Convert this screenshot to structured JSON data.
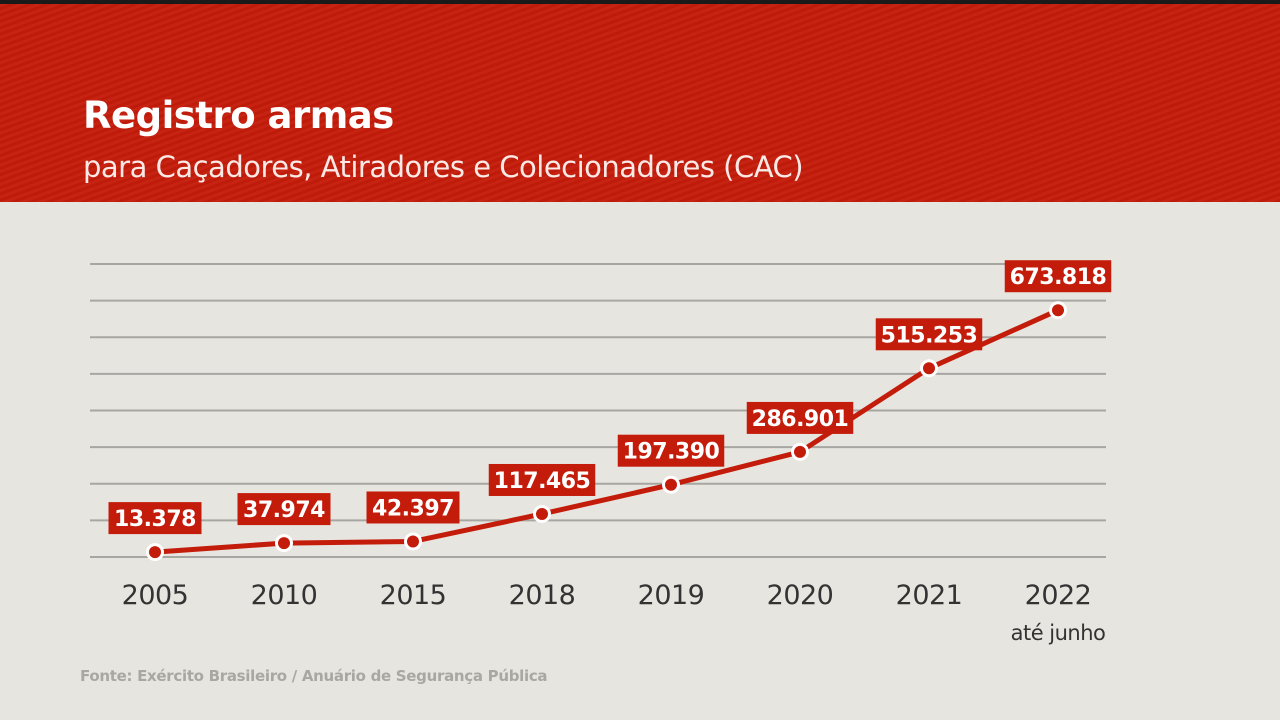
{
  "header": {
    "title": "Registro armas",
    "subtitle": "para Caçadores, Atiradores e Colecionadores (CAC)"
  },
  "source": "Fonte: Exército Brasileiro / Anuário de Segurança Pública",
  "colors": {
    "accent": "#c41c0b",
    "background": "#e7e5df",
    "grid": "#a8a6a2"
  },
  "chart_data": {
    "type": "line",
    "title": "Registro armas",
    "subtitle": "para Caçadores, Atiradores e Colecionadores (CAC)",
    "categories": [
      "2005",
      "2010",
      "2015",
      "2018",
      "2019",
      "2020",
      "2021",
      "2022"
    ],
    "category_notes": {
      "2022": "até junho"
    },
    "values": [
      13378,
      37974,
      42397,
      117465,
      197390,
      286901,
      515253,
      673818
    ],
    "data_labels": [
      "13.378",
      "37.974",
      "42.397",
      "117.465",
      "197.390",
      "286.901",
      "515.253",
      "673.818"
    ],
    "ylim": [
      0,
      800000
    ],
    "grid": true,
    "y_axis_labels_shown": false,
    "legend": "none"
  }
}
